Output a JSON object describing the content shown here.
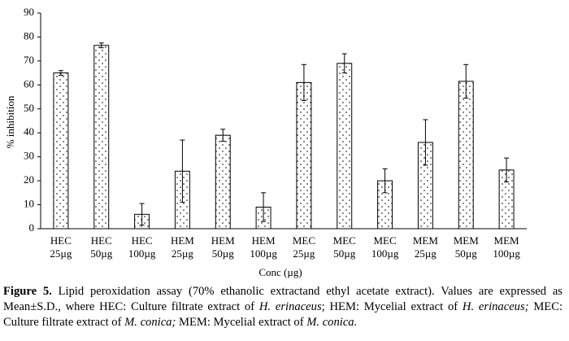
{
  "chart_data": {
    "type": "bar",
    "categories": [
      [
        "HEC",
        "25µg"
      ],
      [
        "HEC",
        "50µg"
      ],
      [
        "HEC",
        "100µg"
      ],
      [
        "HEM",
        "25µg"
      ],
      [
        "HEM",
        "50µg"
      ],
      [
        "HEM",
        "100µg"
      ],
      [
        "MEC",
        "25µg"
      ],
      [
        "MEC",
        "50µg"
      ],
      [
        "MEC",
        "100µg"
      ],
      [
        "MEM",
        "25µg"
      ],
      [
        "MEM",
        "50µg"
      ],
      [
        "MEM",
        "100µg"
      ]
    ],
    "values": [
      65,
      76.5,
      6,
      24,
      39,
      9,
      61,
      69,
      20,
      36,
      61.5,
      24.5
    ],
    "errors": [
      1,
      1,
      4.5,
      13,
      2.5,
      6,
      7.5,
      4,
      5,
      9.5,
      7,
      5
    ],
    "ylim": [
      0,
      90
    ],
    "yticks": [
      0,
      10,
      20,
      30,
      40,
      50,
      60,
      70,
      80,
      90
    ],
    "ylabel": "% inhibition",
    "xlabel": "Conc (µg)",
    "color": "#000000"
  },
  "caption": [
    "Figure 5.",
    " Lipid peroxidation assay (70% ethanolic extractand ethyl acetate extract). Values are expressed as Mean±S.D., where HEC: Culture filtrate extract of ",
    "H. erinaceus",
    "; HEM: Mycelial extract of ",
    "H. erinaceus;",
    " MEC: Culture filtrate extract of ",
    "M. conica;",
    " MEM: Mycelial extract of ",
    "M. conica."
  ]
}
